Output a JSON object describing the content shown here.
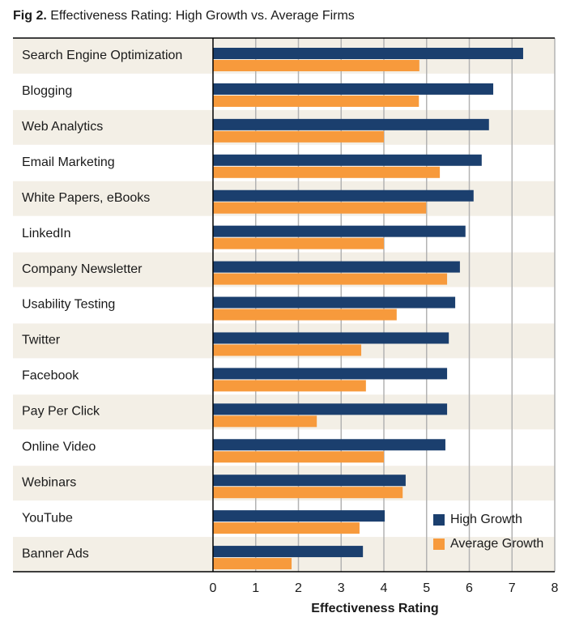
{
  "chart_data": {
    "type": "hbar",
    "title_label": "Fig 2.",
    "title": "Effectiveness Rating: High Growth vs. Average Firms",
    "x_label": "Effectiveness Rating",
    "categories": [
      "Search Engine Optimization",
      "Blogging",
      "Web Analytics",
      "Email Marketing",
      "White Papers, eBooks",
      "LinkedIn",
      "Company Newsletter",
      "Usability Testing",
      "Twitter",
      "Facebook",
      "Pay Per Click",
      "Online Video",
      "Webinars",
      "YouTube",
      "Banner Ads"
    ],
    "series": [
      {
        "name": "High Growth",
        "color": "#1b3f6e",
        "values": [
          7.26,
          6.56,
          6.46,
          6.29,
          6.1,
          5.91,
          5.78,
          5.67,
          5.52,
          5.48,
          5.48,
          5.44,
          4.51,
          4.02,
          3.51
        ]
      },
      {
        "name": "Average Growth",
        "color": "#f79a3c",
        "values": [
          4.83,
          4.82,
          4.0,
          5.31,
          4.99,
          4.0,
          5.48,
          4.3,
          3.47,
          3.58,
          2.43,
          4.0,
          4.44,
          3.43,
          1.84
        ]
      }
    ],
    "xlim": [
      0,
      8
    ],
    "xticks": [
      0,
      1,
      2,
      3,
      4,
      5,
      6,
      7,
      8
    ],
    "grid": true,
    "legend": "lower right",
    "band_color": "#f3efe6"
  }
}
